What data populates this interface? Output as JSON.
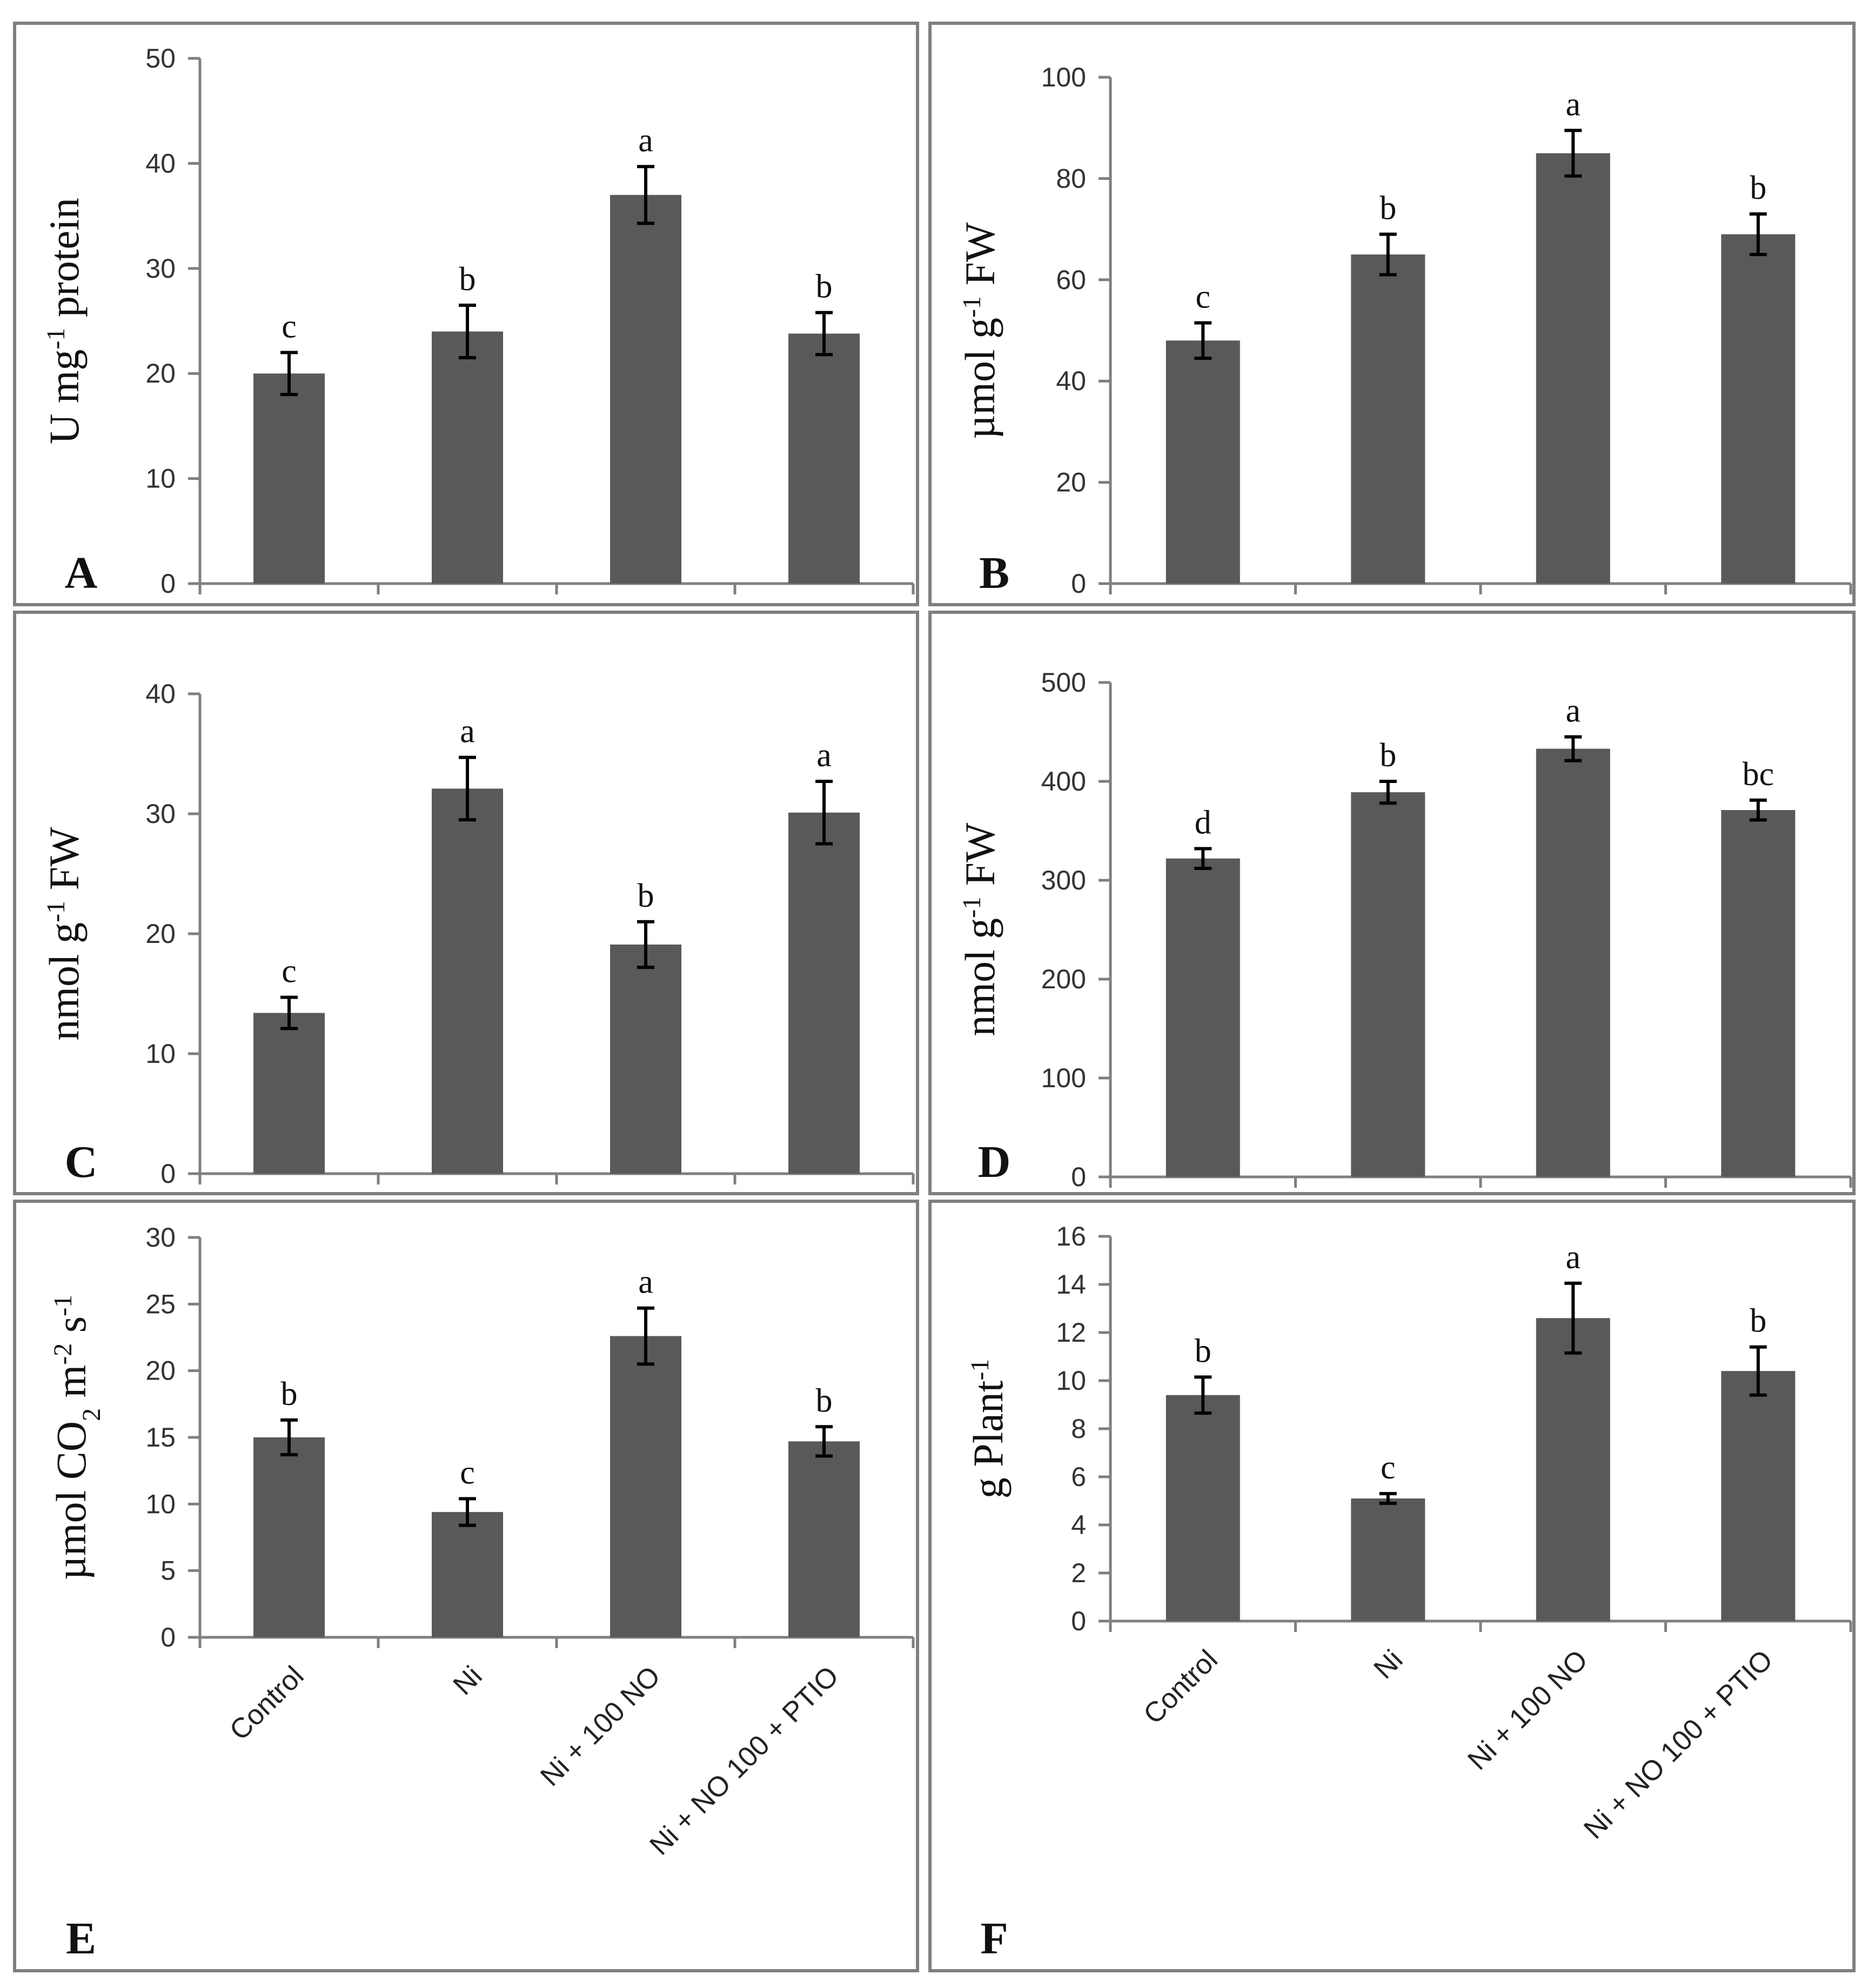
{
  "colors": {
    "bar": "#595959",
    "axis": "#7f7f7f",
    "errorbar": "#000000",
    "frame": "#7f7f7f"
  },
  "categories": [
    "Control",
    "Ni",
    "Ni + 100 NO",
    "Ni + NO 100 + PTIO"
  ],
  "chart_data": [
    {
      "type": "bar",
      "panel": "A",
      "ylabel": "U mg",
      "ylabel_sup": "-1",
      "ylabel_rest": " protein",
      "ylim": [
        0,
        50
      ],
      "yticks": [
        "0",
        "10",
        "20",
        "30",
        "40",
        "50"
      ],
      "categories": [
        "Control",
        "Ni",
        "Ni + 100 NO",
        "Ni + NO 100 + PTIO"
      ],
      "values": [
        20,
        24,
        37,
        23.8
      ],
      "errors": [
        2.0,
        2.5,
        2.7,
        2.0
      ],
      "significance": [
        "c",
        "b",
        "a",
        "b"
      ],
      "show_category_labels": false
    },
    {
      "type": "bar",
      "panel": "B",
      "ylabel": "µmol g",
      "ylabel_sup": "-1",
      "ylabel_rest": " FW",
      "ylim": [
        0,
        100
      ],
      "yticks": [
        "0",
        "20",
        "40",
        "60",
        "80",
        "100"
      ],
      "categories": [
        "Control",
        "Ni",
        "Ni + 100 NO",
        "Ni + NO 100 + PTIO"
      ],
      "values": [
        48,
        65,
        85,
        69
      ],
      "errors": [
        3.5,
        4.0,
        4.5,
        4.0
      ],
      "significance": [
        "c",
        "b",
        "a",
        "b"
      ],
      "show_category_labels": false
    },
    {
      "type": "bar",
      "panel": "C",
      "ylabel": "nmol g",
      "ylabel_sup": "-1",
      "ylabel_rest": " FW",
      "ylim": [
        0,
        40
      ],
      "yticks": [
        "0",
        "10",
        "20",
        "30",
        "40"
      ],
      "categories": [
        "Control",
        "Ni",
        "Ni + 100 NO",
        "Ni + NO 100 + PTIO"
      ],
      "values": [
        13.4,
        32.1,
        19.1,
        30.1
      ],
      "errors": [
        1.3,
        2.6,
        1.9,
        2.6
      ],
      "significance": [
        "c",
        "a",
        "b",
        "a"
      ],
      "show_category_labels": false
    },
    {
      "type": "bar",
      "panel": "D",
      "ylabel": "nmol g",
      "ylabel_sup": "-1",
      "ylabel_rest": " FW",
      "ylim": [
        0,
        500
      ],
      "yticks": [
        "0",
        "100",
        "200",
        "300",
        "400",
        "500"
      ],
      "categories": [
        "Control",
        "Ni",
        "Ni + 100 NO",
        "Ni + NO 100 + PTIO"
      ],
      "values": [
        322,
        389,
        433,
        371
      ],
      "errors": [
        10,
        11,
        12,
        10
      ],
      "significance": [
        "d",
        "b",
        "a",
        "bc"
      ],
      "show_category_labels": false
    },
    {
      "type": "bar",
      "panel": "E",
      "ylabel": "µmol CO",
      "ylabel_sub": "2",
      "ylabel_rest": " m",
      "ylabel_sup": "-2",
      "ylabel_rest2": " s",
      "ylabel_sup2": "-1",
      "ylim": [
        0,
        30
      ],
      "yticks": [
        "0",
        "5",
        "10",
        "15",
        "20",
        "25",
        "30"
      ],
      "categories": [
        "Control",
        "Ni",
        "Ni + 100 NO",
        "Ni + NO 100 + PTIO"
      ],
      "values": [
        15,
        9.4,
        22.6,
        14.7
      ],
      "errors": [
        1.3,
        1.0,
        2.1,
        1.1
      ],
      "significance": [
        "b",
        "c",
        "a",
        "b"
      ],
      "show_category_labels": true
    },
    {
      "type": "bar",
      "panel": "F",
      "ylabel": "g Plant",
      "ylabel_sup": "-1",
      "ylim": [
        0,
        16
      ],
      "yticks": [
        "0",
        "2",
        "4",
        "6",
        "8",
        "10",
        "12",
        "14",
        "16"
      ],
      "categories": [
        "Control",
        "Ni",
        "Ni + 100 NO",
        "Ni + NO 100 + PTIO"
      ],
      "values": [
        9.4,
        5.1,
        12.6,
        10.4
      ],
      "errors": [
        0.75,
        0.2,
        1.45,
        1.0
      ],
      "significance": [
        "b",
        "c",
        "a",
        "b"
      ],
      "show_category_labels": true
    }
  ]
}
